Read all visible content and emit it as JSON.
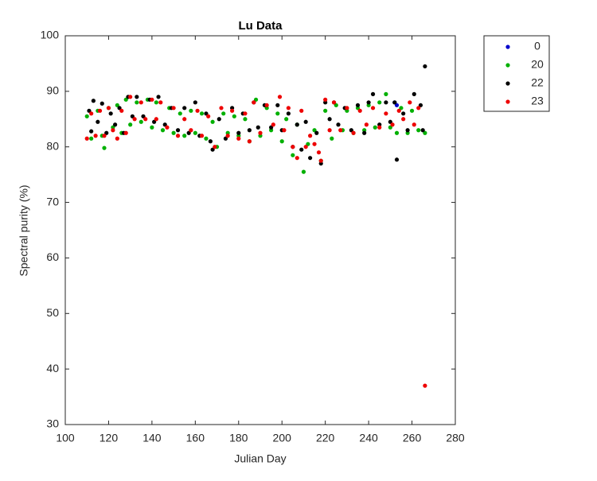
{
  "chart_data": {
    "type": "scatter",
    "title": "Lu Data",
    "x_label": "Julian Day",
    "y_label": "Spectral purity (%)",
    "xlim": [
      100,
      280
    ],
    "xticks": [
      100,
      120,
      140,
      160,
      180,
      200,
      220,
      240,
      260,
      280
    ],
    "ylim": [
      30,
      100
    ],
    "yticks": [
      30,
      40,
      50,
      60,
      70,
      80,
      90,
      100
    ],
    "grid": false,
    "legend": "outside-top-right",
    "series": [
      {
        "name": "0",
        "color": "#0000cc",
        "x": [
          252,
          253
        ],
        "values": [
          88,
          87.5
        ]
      },
      {
        "name": "20",
        "color": "#00b000",
        "x": [
          110,
          112,
          115,
          117,
          118,
          120,
          122,
          124,
          126,
          128,
          130,
          133,
          135,
          138,
          140,
          142,
          145,
          148,
          150,
          153,
          155,
          158,
          160,
          163,
          165,
          168,
          170,
          173,
          175,
          178,
          180,
          183,
          185,
          188,
          190,
          193,
          195,
          198,
          200,
          202,
          205,
          207,
          210,
          212,
          215,
          218,
          220,
          223,
          225,
          228,
          230,
          233,
          235,
          238,
          240,
          243,
          245,
          248,
          250,
          253,
          255,
          258,
          260,
          263,
          266
        ],
        "values": [
          85.5,
          81.5,
          86.5,
          82,
          79.8,
          87,
          83.5,
          87.5,
          82.5,
          88.5,
          84,
          88,
          84.5,
          88.5,
          83.5,
          88,
          83,
          87,
          82.5,
          86,
          82,
          86.5,
          82.5,
          86,
          81.5,
          84.5,
          80,
          86,
          82.5,
          85.5,
          82,
          85,
          81,
          88.5,
          82,
          87,
          83,
          86,
          81,
          85,
          78.5,
          84,
          75.5,
          80.5,
          83,
          77.5,
          86.5,
          81.5,
          87.5,
          83,
          86.5,
          82.5,
          87,
          83,
          87.5,
          83.5,
          88,
          89.5,
          83.5,
          82.5,
          87,
          82.5,
          86.5,
          83,
          82.5
        ]
      },
      {
        "name": "22",
        "color": "#000000",
        "x": [
          111,
          112,
          113,
          115,
          117,
          119,
          121,
          123,
          125,
          127,
          129,
          131,
          133,
          136,
          139,
          141,
          143,
          146,
          149,
          152,
          155,
          157,
          160,
          162,
          165,
          167,
          168,
          171,
          174,
          177,
          180,
          182,
          185,
          187,
          189,
          192,
          195,
          198,
          200,
          203,
          205,
          207,
          209,
          211,
          213,
          216,
          218,
          220,
          222,
          224,
          226,
          229,
          232,
          235,
          238,
          240,
          242,
          245,
          248,
          250,
          252,
          253,
          256,
          258,
          261,
          264,
          265,
          266
        ],
        "values": [
          86.5,
          82.8,
          88.3,
          84.5,
          87.8,
          82.5,
          86,
          84,
          87,
          82.5,
          89,
          85.5,
          89,
          85.5,
          88.5,
          84.5,
          89,
          84,
          87,
          83,
          87,
          82.5,
          88,
          82,
          86,
          81,
          79.5,
          85,
          81.5,
          87,
          82.5,
          86,
          83,
          88,
          83.5,
          87.5,
          83.5,
          87.5,
          83,
          86,
          80,
          84,
          79.5,
          84.5,
          78,
          82.5,
          77,
          88,
          85,
          88,
          84,
          87,
          83,
          87.5,
          82.5,
          88,
          89.5,
          84,
          88,
          84.5,
          88,
          77.7,
          86,
          83,
          89.5,
          87.5,
          83,
          94.5
        ]
      },
      {
        "name": "23",
        "color": "#ee0000",
        "x": [
          110,
          112,
          114,
          116,
          118,
          120,
          122,
          124,
          126,
          128,
          130,
          132,
          135,
          137,
          140,
          142,
          144,
          147,
          150,
          152,
          155,
          158,
          161,
          163,
          166,
          169,
          172,
          175,
          177,
          180,
          183,
          185,
          187,
          190,
          193,
          196,
          199,
          201,
          203,
          205,
          207,
          209,
          211,
          213,
          215,
          217,
          218,
          220,
          222,
          224,
          227,
          230,
          233,
          236,
          239,
          242,
          245,
          248,
          251,
          254,
          256,
          259,
          261,
          263,
          266
        ],
        "values": [
          81.5,
          86,
          82,
          86.5,
          82,
          87,
          83,
          81.5,
          86.5,
          82.5,
          89,
          85,
          88,
          85,
          88.5,
          85,
          88,
          83.5,
          87,
          82,
          85,
          83,
          86.5,
          82,
          85.5,
          80,
          87,
          82,
          86.5,
          81.5,
          86,
          81,
          88,
          82.5,
          87.5,
          84,
          89,
          83,
          87,
          80,
          78,
          86.5,
          80,
          82,
          80.5,
          79,
          77.5,
          88.5,
          83,
          88,
          83,
          87,
          82.5,
          86.5,
          84,
          87,
          83.5,
          86,
          84,
          86.5,
          85,
          88,
          84,
          87,
          37
        ]
      }
    ]
  }
}
